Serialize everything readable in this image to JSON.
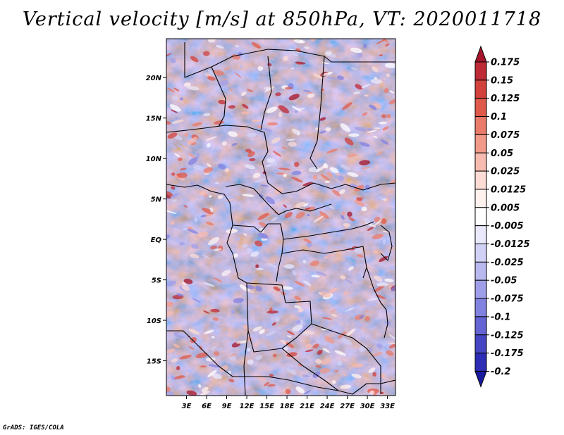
{
  "chart_data": {
    "type": "heatmap",
    "title": "Vertical velocity [m/s] at 850hPa, VT: 2020011718",
    "x_ticks": [
      "3E",
      "6E",
      "9E",
      "12E",
      "15E",
      "18E",
      "21E",
      "24E",
      "27E",
      "30E",
      "33E"
    ],
    "y_ticks": [
      "20N",
      "15N",
      "10N",
      "5N",
      "EQ",
      "5S",
      "10S",
      "15S"
    ],
    "x_tick_values": [
      3,
      6,
      9,
      12,
      15,
      18,
      21,
      24,
      27,
      30,
      33
    ],
    "y_tick_values": [
      20,
      15,
      10,
      5,
      0,
      -5,
      -10,
      -15
    ],
    "xlim": [
      0,
      34.2
    ],
    "ylim": [
      -19.3,
      24.8
    ],
    "colorbar_levels": [
      "0.175",
      "0.15",
      "0.125",
      "0.1",
      "0.075",
      "0.05",
      "0.025",
      "0.0125",
      "0.005",
      "-0.005",
      "-0.0125",
      "-0.025",
      "-0.05",
      "-0.075",
      "-0.1",
      "-0.125",
      "-0.175",
      "-0.2"
    ],
    "colorbar_colors": [
      "#a4152b",
      "#be2a35",
      "#d2413c",
      "#e05a4b",
      "#ea7b6a",
      "#f29a8a",
      "#f8bbaf",
      "#fcdcd5",
      "#fff1ee",
      "#ffffff",
      "#e9e9fb",
      "#d1d1f6",
      "#b9b9f0",
      "#9f9fe9",
      "#8282e0",
      "#6464d4",
      "#4545c4",
      "#2c2cb4",
      "#1a1aa0"
    ]
  },
  "footer": {
    "credit": "GrADS: IGES/COLA"
  }
}
